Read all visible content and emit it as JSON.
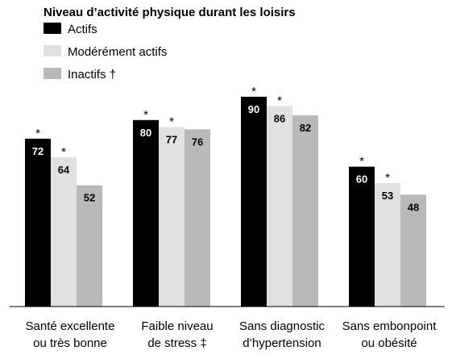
{
  "chart_data": {
    "type": "bar",
    "title": "",
    "legend": {
      "title": "Niveau d’activité physique durant les loisirs",
      "placement": "top-left"
    },
    "categories": [
      [
        "Santé excellente",
        "ou très bonne"
      ],
      [
        "Faible niveau",
        "de stress ‡"
      ],
      [
        "Sans diagnostic",
        "d’hypertension"
      ],
      [
        "Sans embonpoint",
        "ou obésité"
      ]
    ],
    "series": [
      {
        "name": "Actifs",
        "color": "#000000",
        "label_color": "#ffffff",
        "values": [
          72,
          80,
          90,
          60
        ],
        "significance": [
          "*",
          "*",
          "*",
          "*"
        ]
      },
      {
        "name": "Modérément actifs",
        "color": "#e1e1e1",
        "label_color": "#000000",
        "values": [
          64,
          77,
          86,
          53
        ],
        "significance": [
          "*",
          "*",
          "*",
          "*"
        ]
      },
      {
        "name": "Inactifs †",
        "color": "#b9b9b9",
        "label_color": "#000000",
        "values": [
          52,
          76,
          82,
          48
        ],
        "significance": [
          "",
          "",
          "",
          ""
        ]
      }
    ],
    "ylim": [
      0,
      100
    ],
    "xlabel": "",
    "ylabel": "",
    "grid": false
  }
}
